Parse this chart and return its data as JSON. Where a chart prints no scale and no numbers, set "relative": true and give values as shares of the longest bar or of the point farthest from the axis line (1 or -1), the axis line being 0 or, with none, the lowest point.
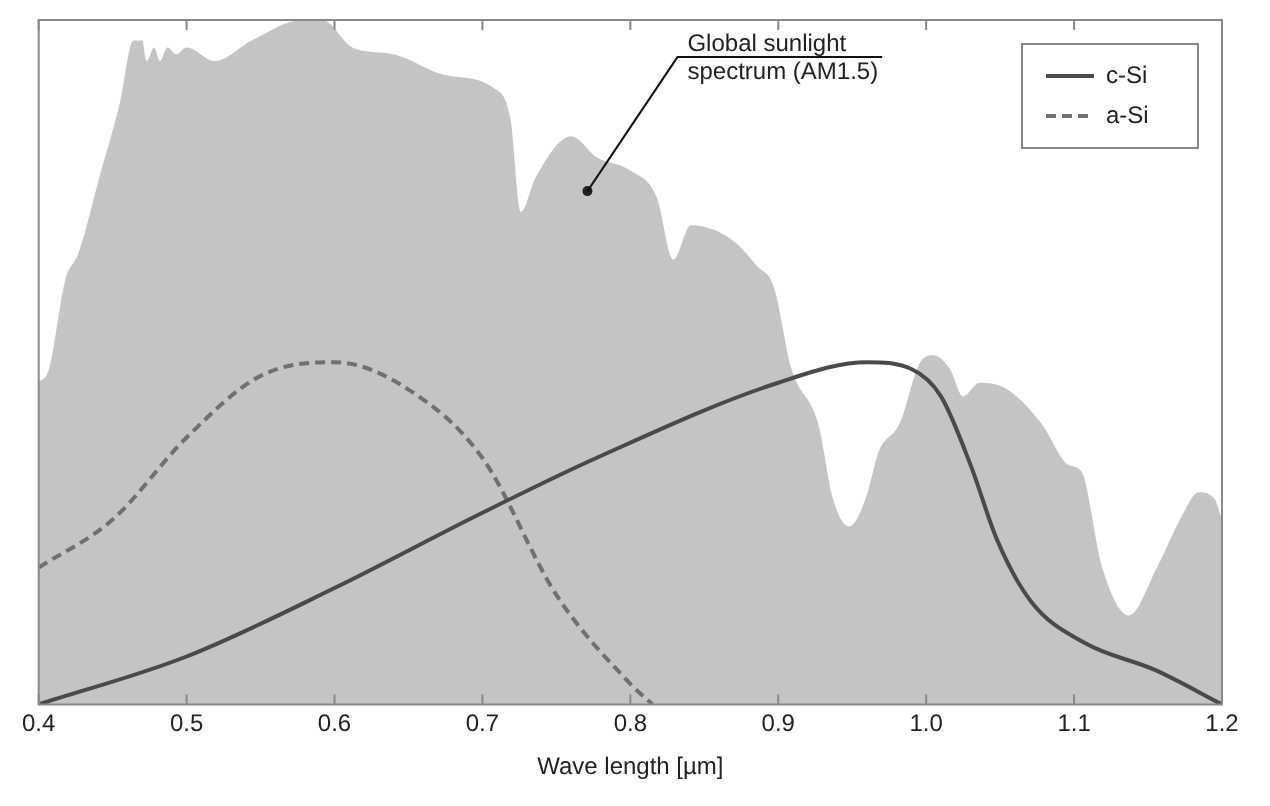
{
  "chart_data": {
    "type": "line",
    "relative": true,
    "xlabel": "Wave length [µm]",
    "xlim": [
      0.4,
      1.2
    ],
    "xticks": [
      0.4,
      0.5,
      0.6,
      0.7,
      0.8,
      0.9,
      {
        "value": 1,
        "label": "1.0"
      },
      1.1,
      1.2
    ],
    "grid": false,
    "legend": "top right",
    "marker": "none",
    "series": [
      {
        "type": "area",
        "color": "#c4c4c4",
        "x": [
          0.4,
          0.407,
          0.418,
          0.427,
          0.441,
          0.455,
          0.464,
          0.47,
          0.473,
          0.478,
          0.482,
          0.487,
          0.493,
          0.5,
          0.519,
          0.544,
          0.578,
          0.592,
          0.612,
          0.64,
          0.674,
          0.708,
          0.719,
          0.726,
          0.736,
          0.76,
          0.777,
          0.8,
          0.818,
          0.829,
          0.841,
          0.868,
          0.886,
          0.897,
          0.909,
          0.927,
          0.937,
          0.948,
          0.959,
          0.968,
          0.982,
          0.996,
          1.005,
          1.016,
          1.025,
          1.036,
          1.055,
          1.078,
          1.096,
          1.105,
          1.119,
          1.137,
          1.156,
          1.174,
          1.184,
          1.195,
          1.2
        ],
        "values": [
          0.47,
          0.49,
          0.62,
          0.66,
          0.77,
          0.88,
          0.97,
          0.97,
          0.94,
          0.96,
          0.94,
          0.96,
          0.95,
          0.96,
          0.94,
          0.97,
          1.0,
          1.0,
          0.96,
          0.95,
          0.92,
          0.9,
          0.855,
          0.72,
          0.77,
          0.83,
          0.8,
          0.78,
          0.74,
          0.65,
          0.7,
          0.68,
          0.64,
          0.61,
          0.49,
          0.41,
          0.3,
          0.26,
          0.3,
          0.37,
          0.41,
          0.5,
          0.51,
          0.49,
          0.45,
          0.47,
          0.46,
          0.41,
          0.35,
          0.34,
          0.2,
          0.13,
          0.2,
          0.28,
          0.31,
          0.3,
          0.27
        ]
      },
      {
        "name": "c-Si",
        "type": "line",
        "color": "#4a4a4a",
        "line_style": "solid",
        "x": [
          0.4,
          0.5,
          0.6,
          0.7,
          0.777,
          0.9,
          0.96,
          0.99,
          1.01,
          1.03,
          1.048,
          1.071,
          1.107,
          1.155,
          1.2
        ],
        "values": [
          0,
          0.07,
          0.17,
          0.28,
          0.36,
          0.47,
          0.5,
          0.49,
          0.45,
          0.35,
          0.24,
          0.15,
          0.09,
          0.05,
          0
        ]
      },
      {
        "name": "a-Si",
        "type": "line",
        "color": "#707070",
        "line_style": "dashed",
        "x": [
          0.4,
          0.45,
          0.5,
          0.55,
          0.6,
          0.65,
          0.7,
          0.75,
          0.8,
          0.815
        ],
        "values": [
          0.2,
          0.27,
          0.39,
          0.48,
          0.5,
          0.46,
          0.36,
          0.16,
          0.03,
          0
        ]
      }
    ],
    "annotations": [
      {
        "text": "Global sunlight spectrum (AM1.5)",
        "x": 0.771,
        "y": 0.75
      }
    ]
  }
}
